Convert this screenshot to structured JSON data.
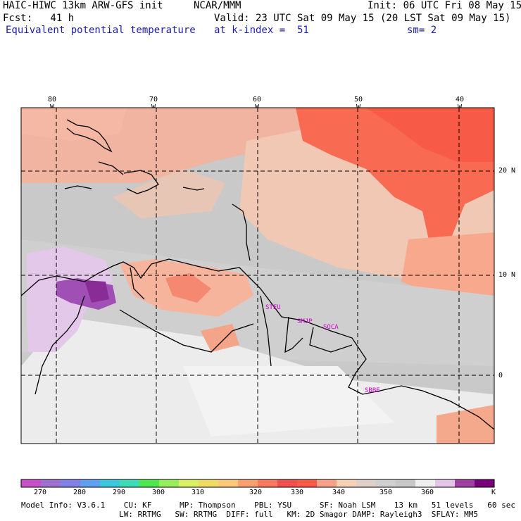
{
  "header": {
    "title": "HAIC-HIWC 13km ARW-GFS init",
    "org": "NCAR/MMM",
    "init": "Init: 06 UTC Fri 08 May 15",
    "fcst": "Fcst:   41 h",
    "valid": "Valid: 23 UTC Sat 09 May 15 (20 LST Sat 09 May 15)",
    "field": "Equivalent potential temperature",
    "level": "at k-index =  51",
    "smooth": "sm= 2"
  },
  "axes": {
    "lon_labels": [
      "80 W",
      "70 W",
      "60 W",
      "50 W",
      "40 W"
    ],
    "lat_labels": [
      "20 N",
      "10 N",
      "0"
    ]
  },
  "cities": [
    "STEU",
    "SMJP",
    "SOCA",
    "SBBE"
  ],
  "colorbar": {
    "colors": [
      "#c850c8",
      "#a070d0",
      "#8080e6",
      "#60a0f0",
      "#3cc8dc",
      "#3cdcb4",
      "#50e650",
      "#96ee5a",
      "#dcf064",
      "#f0dc64",
      "#fac878",
      "#f8a070",
      "#f87860",
      "#f05050",
      "#fa5a46",
      "#f8a088",
      "#f8d0b4",
      "#e0d0c8",
      "#d0d0d0",
      "#c8c8c8",
      "#f0f0f0",
      "#e4c4e8",
      "#a040a0",
      "#780078"
    ],
    "tick_labels": [
      "270",
      "280",
      "290",
      "300",
      "310",
      "320",
      "330",
      "340",
      "350",
      "360"
    ],
    "unit": "K"
  },
  "footer": {
    "line1": "Model Info: V3.6.1    CU: KF      MP: Thompson    PBL: YSU      SF: Noah LSM    13 km   51 levels   60 sec",
    "line2": "                     LW: RRTMG   SW: RRTMG  DIFF: full   KM: 2D Smagor DAMP: Rayleigh3  SFLAY: MM5"
  }
}
